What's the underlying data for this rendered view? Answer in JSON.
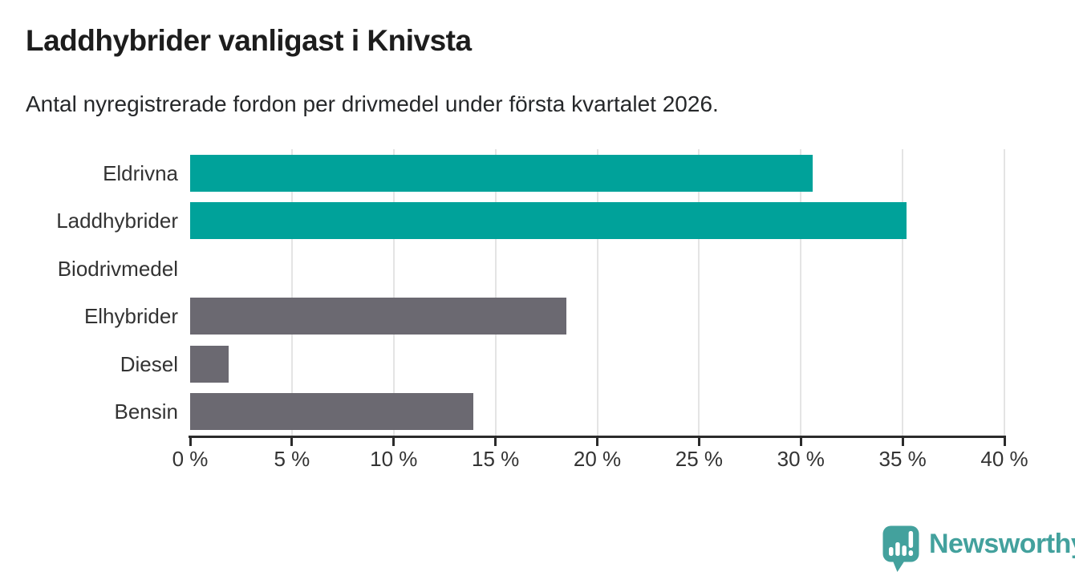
{
  "header": {
    "title": "Laddhybrider vanligast i Knivsta",
    "subtitle": "Antal nyregistrerade fordon per drivmedel under första kvartalet 2026."
  },
  "chart_data": {
    "type": "bar",
    "orientation": "horizontal",
    "title": "Laddhybrider vanligast i Knivsta",
    "subtitle": "Antal nyregistrerade fordon per drivmedel under första kvartalet 2026.",
    "categories": [
      "Eldrivna",
      "Laddhybrider",
      "Biodrivmedel",
      "Elhybrider",
      "Diesel",
      "Bensin"
    ],
    "values": [
      30.6,
      35.2,
      0,
      18.5,
      1.9,
      13.9
    ],
    "unit": "%",
    "bar_colors": [
      "#00a29a",
      "#00a29a",
      "#6b6971",
      "#6b6971",
      "#6b6971",
      "#6b6971"
    ],
    "xlabel": "",
    "ylabel": "",
    "xlim": [
      0,
      40
    ],
    "x_ticks": [
      0,
      5,
      10,
      15,
      20,
      25,
      30,
      35,
      40
    ],
    "x_tick_labels": [
      "0 %",
      "5 %",
      "10 %",
      "15 %",
      "20 %",
      "25 %",
      "30 %",
      "35 %",
      "40 %"
    ],
    "grid": "vertical",
    "legend": "none"
  },
  "footer": {
    "brand": "Newsworthy"
  },
  "colors": {
    "teal_bar": "#00a29a",
    "gray_bar": "#6b6971",
    "brand": "#43a19d",
    "grid": "#e4e4e4",
    "axis": "#2b2b2b",
    "title_text": "#1d1d1d",
    "label_text": "#333333"
  }
}
